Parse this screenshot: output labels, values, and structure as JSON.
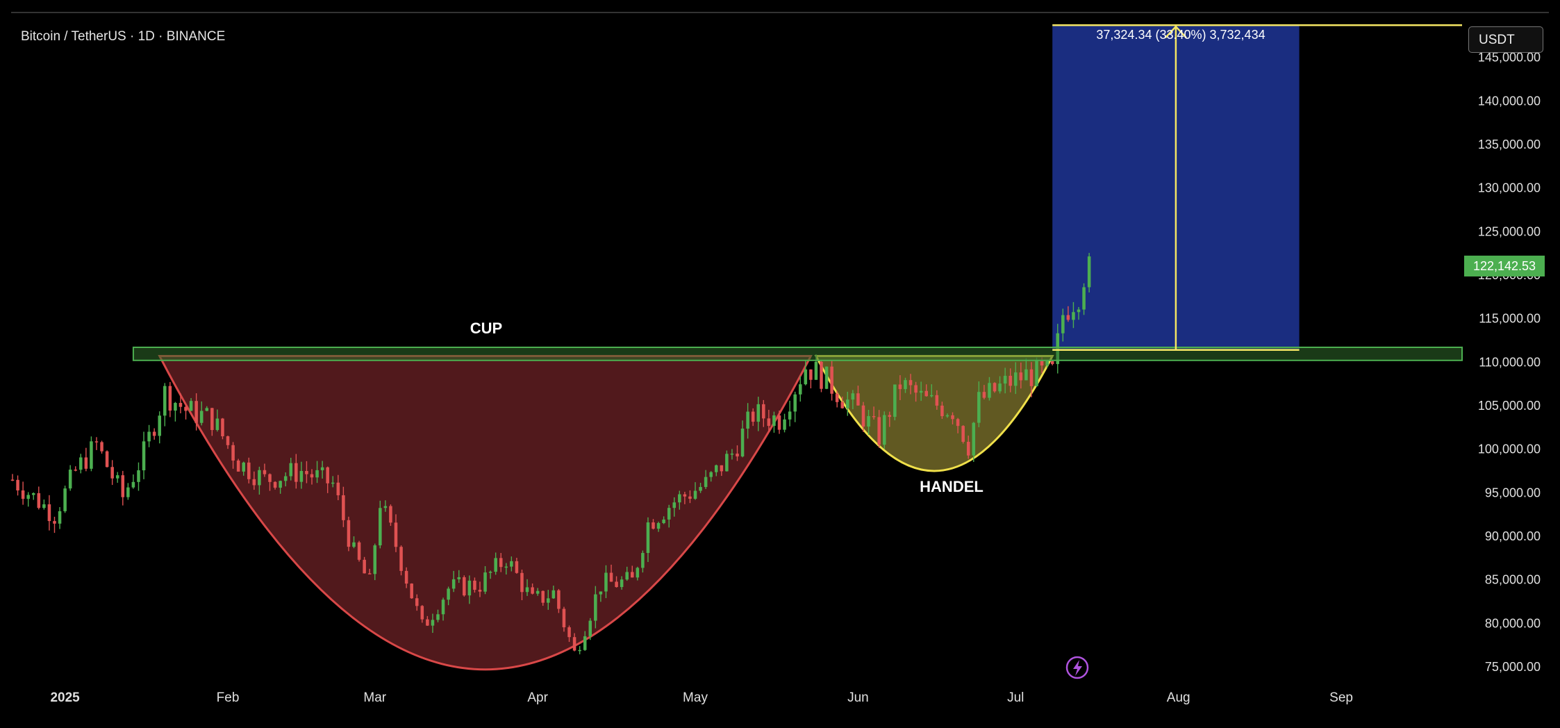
{
  "header": {
    "symbol": "Bitcoin / TetherUS · 1D · BINANCE",
    "currency_button": "USDT"
  },
  "current_price": "122,142.53",
  "colors": {
    "up": "#4caf50",
    "down": "#e05252",
    "cup_fill": "#5a1c1f",
    "handle_fill": "#6b6326",
    "target_box": "#1a2d80",
    "resistance": "#4caf50",
    "measure_line": "#f5e663"
  },
  "chart_data": {
    "type": "candlestick",
    "ylim": [
      73000,
      150000
    ],
    "y_ticks": [
      "75,000.00",
      "80,000.00",
      "85,000.00",
      "90,000.00",
      "95,000.00",
      "100,000.00",
      "105,000.00",
      "110,000.00",
      "115,000.00",
      "120,000.00",
      "125,000.00",
      "130,000.00",
      "135,000.00",
      "140,000.00",
      "145,000.00"
    ],
    "x_ticks": [
      {
        "label": "2025",
        "date": "2025-01-01"
      },
      {
        "label": "Feb",
        "date": "2025-02-01"
      },
      {
        "label": "Mar",
        "date": "2025-03-01"
      },
      {
        "label": "Apr",
        "date": "2025-04-01"
      },
      {
        "label": "May",
        "date": "2025-05-01"
      },
      {
        "label": "Jun",
        "date": "2025-06-01"
      },
      {
        "label": "Jul",
        "date": "2025-07-01"
      },
      {
        "label": "Aug",
        "date": "2025-08-01"
      },
      {
        "label": "Sep",
        "date": "2025-09-01"
      }
    ],
    "x_range": [
      "2024-12-22",
      "2025-09-24"
    ],
    "close_path": [
      [
        "2024-12-22",
        96500
      ],
      [
        "2024-12-27",
        94000
      ],
      [
        "2024-12-30",
        92500
      ],
      [
        "2025-01-03",
        97500
      ],
      [
        "2025-01-07",
        100500
      ],
      [
        "2025-01-12",
        94500
      ],
      [
        "2025-01-16",
        99500
      ],
      [
        "2025-01-20",
        106500
      ],
      [
        "2025-01-24",
        104500
      ],
      [
        "2025-01-29",
        103500
      ],
      [
        "2025-02-03",
        98500
      ],
      [
        "2025-02-08",
        96500
      ],
      [
        "2025-02-15",
        97500
      ],
      [
        "2025-02-21",
        96000
      ],
      [
        "2025-02-25",
        88000
      ],
      [
        "2025-02-28",
        84500
      ],
      [
        "2025-03-02",
        94000
      ],
      [
        "2025-03-05",
        89000
      ],
      [
        "2025-03-10",
        79500
      ],
      [
        "2025-03-15",
        84000
      ],
      [
        "2025-03-21",
        84500
      ],
      [
        "2025-03-26",
        87500
      ],
      [
        "2025-03-31",
        82500
      ],
      [
        "2025-04-04",
        83500
      ],
      [
        "2025-04-08",
        76500
      ],
      [
        "2025-04-13",
        84500
      ],
      [
        "2025-04-19",
        84800
      ],
      [
        "2025-04-22",
        91500
      ],
      [
        "2025-04-27",
        94000
      ],
      [
        "2025-05-03",
        96000
      ],
      [
        "2025-05-08",
        99500
      ],
      [
        "2025-05-12",
        104000
      ],
      [
        "2025-05-17",
        103500
      ],
      [
        "2025-05-22",
        109500
      ],
      [
        "2025-05-25",
        108500
      ],
      [
        "2025-05-29",
        106000
      ],
      [
        "2025-06-01",
        104500
      ],
      [
        "2025-06-05",
        101500
      ],
      [
        "2025-06-09",
        107500
      ],
      [
        "2025-06-14",
        105500
      ],
      [
        "2025-06-19",
        104500
      ],
      [
        "2025-06-22",
        100500
      ],
      [
        "2025-06-24",
        105500
      ],
      [
        "2025-06-29",
        107500
      ],
      [
        "2025-07-03",
        108500
      ],
      [
        "2025-07-08",
        108800
      ],
      [
        "2025-07-10",
        115500
      ],
      [
        "2025-07-13",
        117800
      ],
      [
        "2025-07-15",
        122142.53
      ]
    ],
    "patterns": [
      {
        "name": "CUP",
        "start": "2025-01-19",
        "end": "2025-05-23",
        "top": 110700,
        "bottom": 74700
      },
      {
        "name": "HANDEL",
        "start": "2025-05-24",
        "end": "2025-07-08",
        "top": 110700,
        "bottom": 97500
      }
    ],
    "resistance_zone": {
      "from": "2025-01-14",
      "to": "2025-09-24",
      "low": 110200,
      "high": 111700
    },
    "target_box": {
      "from": "2025-07-08",
      "to": "2025-08-24",
      "low": 111400,
      "high": 148700
    },
    "measure_label": "37,324.34 (33.40%) 3,732,434"
  }
}
